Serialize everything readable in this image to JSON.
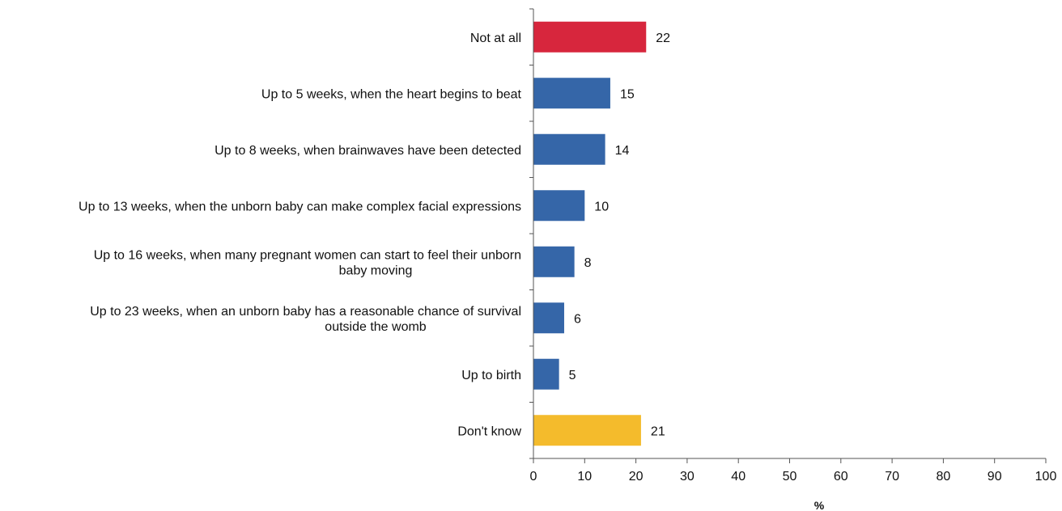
{
  "chart_data": {
    "type": "bar",
    "orientation": "horizontal",
    "categories": [
      [
        "Not at all"
      ],
      [
        "Up to 5 weeks, when the heart begins to beat"
      ],
      [
        "Up to 8 weeks, when brainwaves have been detected"
      ],
      [
        "Up to 13 weeks, when the unborn baby can make complex facial expressions"
      ],
      [
        "Up to 16 weeks, when many pregnant women can start to feel their unborn",
        "baby moving"
      ],
      [
        "Up to 23 weeks, when an unborn baby has a reasonable chance of survival",
        "outside the womb"
      ],
      [
        "Up to birth"
      ],
      [
        "Don't know"
      ]
    ],
    "values": [
      22,
      15,
      14,
      10,
      8,
      6,
      5,
      21
    ],
    "data_labels": [
      "22",
      "15",
      "14",
      "10",
      "8",
      "6",
      "5",
      "21"
    ],
    "bar_colors": [
      "#d7263d",
      "#3566a8",
      "#3566a8",
      "#3566a8",
      "#3566a8",
      "#3566a8",
      "#3566a8",
      "#f4bb2c"
    ],
    "xlim": [
      0,
      100
    ],
    "x_ticks": [
      0,
      10,
      20,
      30,
      40,
      50,
      60,
      70,
      80,
      90,
      100
    ],
    "xlabel": "%",
    "ylabel": "",
    "title": "",
    "grid": false,
    "legend": "none"
  }
}
